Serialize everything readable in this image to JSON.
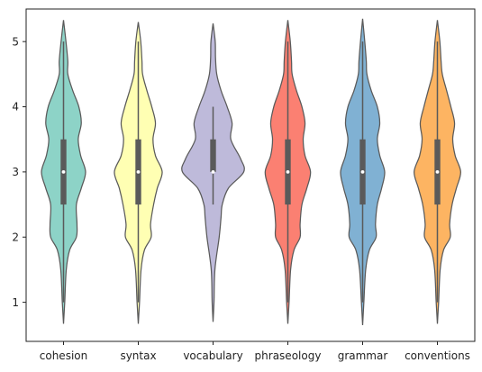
{
  "chart_data": {
    "type": "violin",
    "title": "",
    "xlabel": "",
    "ylabel": "",
    "ylim": [
      0.4,
      5.5
    ],
    "yticks": [
      1,
      2,
      3,
      4,
      5
    ],
    "grid": false,
    "categories": [
      "cohesion",
      "syntax",
      "vocabulary",
      "phraseology",
      "grammar",
      "conventions"
    ],
    "colors": [
      "#8dd3c7",
      "#ffffb3",
      "#bebada",
      "#fb8072",
      "#80b1d3",
      "#fdb462"
    ],
    "outline_color": "#5a5a5a",
    "violins": [
      {
        "category": "cohesion",
        "min": 0.67,
        "max": 5.33,
        "q1": 2.5,
        "median": 3.0,
        "q3": 3.5,
        "whisker_low": 1.0,
        "whisker_high": 5.0,
        "density": [
          [
            0.67,
            0.0
          ],
          [
            1.0,
            0.04
          ],
          [
            1.5,
            0.09
          ],
          [
            1.8,
            0.2
          ],
          [
            2.0,
            0.42
          ],
          [
            2.2,
            0.44
          ],
          [
            2.5,
            0.42
          ],
          [
            2.75,
            0.58
          ],
          [
            3.0,
            0.72
          ],
          [
            3.25,
            0.56
          ],
          [
            3.5,
            0.48
          ],
          [
            3.75,
            0.58
          ],
          [
            4.0,
            0.5
          ],
          [
            4.25,
            0.3
          ],
          [
            4.5,
            0.14
          ],
          [
            4.7,
            0.14
          ],
          [
            5.0,
            0.08
          ],
          [
            5.33,
            0.0
          ]
        ]
      },
      {
        "category": "syntax",
        "min": 0.67,
        "max": 5.3,
        "q1": 2.5,
        "median": 3.0,
        "q3": 3.5,
        "whisker_low": 1.0,
        "whisker_high": 5.0,
        "density": [
          [
            0.67,
            0.0
          ],
          [
            1.0,
            0.04
          ],
          [
            1.5,
            0.09
          ],
          [
            1.8,
            0.2
          ],
          [
            2.0,
            0.42
          ],
          [
            2.2,
            0.4
          ],
          [
            2.5,
            0.5
          ],
          [
            2.75,
            0.62
          ],
          [
            3.0,
            0.78
          ],
          [
            3.25,
            0.56
          ],
          [
            3.5,
            0.48
          ],
          [
            3.75,
            0.56
          ],
          [
            4.0,
            0.44
          ],
          [
            4.25,
            0.28
          ],
          [
            4.5,
            0.14
          ],
          [
            4.7,
            0.12
          ],
          [
            5.0,
            0.08
          ],
          [
            5.3,
            0.0
          ]
        ]
      },
      {
        "category": "vocabulary",
        "min": 0.7,
        "max": 5.28,
        "q1": 3.0,
        "median": 3.0,
        "q3": 3.5,
        "whisker_low": 2.5,
        "whisker_high": 4.0,
        "density": [
          [
            0.7,
            0.0
          ],
          [
            1.0,
            0.03
          ],
          [
            1.5,
            0.06
          ],
          [
            2.0,
            0.2
          ],
          [
            2.3,
            0.26
          ],
          [
            2.5,
            0.3
          ],
          [
            2.75,
            0.5
          ],
          [
            3.0,
            1.0
          ],
          [
            3.2,
            0.9
          ],
          [
            3.5,
            0.58
          ],
          [
            3.75,
            0.62
          ],
          [
            4.0,
            0.46
          ],
          [
            4.25,
            0.26
          ],
          [
            4.5,
            0.12
          ],
          [
            4.75,
            0.08
          ],
          [
            5.0,
            0.07
          ],
          [
            5.28,
            0.0
          ]
        ]
      },
      {
        "category": "phraseology",
        "min": 0.67,
        "max": 5.33,
        "q1": 2.5,
        "median": 3.0,
        "q3": 3.5,
        "whisker_low": 1.0,
        "whisker_high": 5.0,
        "density": [
          [
            0.67,
            0.0
          ],
          [
            1.0,
            0.04
          ],
          [
            1.5,
            0.09
          ],
          [
            1.8,
            0.2
          ],
          [
            2.0,
            0.4
          ],
          [
            2.2,
            0.4
          ],
          [
            2.5,
            0.46
          ],
          [
            2.75,
            0.62
          ],
          [
            3.0,
            0.74
          ],
          [
            3.25,
            0.56
          ],
          [
            3.5,
            0.5
          ],
          [
            3.75,
            0.56
          ],
          [
            4.0,
            0.46
          ],
          [
            4.25,
            0.28
          ],
          [
            4.5,
            0.14
          ],
          [
            4.7,
            0.12
          ],
          [
            5.0,
            0.08
          ],
          [
            5.33,
            0.0
          ]
        ]
      },
      {
        "category": "grammar",
        "min": 0.65,
        "max": 5.35,
        "q1": 2.5,
        "median": 3.0,
        "q3": 3.5,
        "whisker_low": 1.0,
        "whisker_high": 5.0,
        "density": [
          [
            0.65,
            0.0
          ],
          [
            1.0,
            0.04
          ],
          [
            1.5,
            0.1
          ],
          [
            1.8,
            0.22
          ],
          [
            2.0,
            0.44
          ],
          [
            2.2,
            0.42
          ],
          [
            2.5,
            0.48
          ],
          [
            2.75,
            0.62
          ],
          [
            3.0,
            0.72
          ],
          [
            3.25,
            0.56
          ],
          [
            3.5,
            0.48
          ],
          [
            3.75,
            0.56
          ],
          [
            4.0,
            0.48
          ],
          [
            4.25,
            0.28
          ],
          [
            4.5,
            0.14
          ],
          [
            4.7,
            0.12
          ],
          [
            5.0,
            0.07
          ],
          [
            5.35,
            0.0
          ]
        ]
      },
      {
        "category": "conventions",
        "min": 0.67,
        "max": 5.33,
        "q1": 2.5,
        "median": 3.0,
        "q3": 3.5,
        "whisker_low": 1.0,
        "whisker_high": 5.0,
        "density": [
          [
            0.67,
            0.0
          ],
          [
            1.0,
            0.04
          ],
          [
            1.5,
            0.09
          ],
          [
            1.8,
            0.2
          ],
          [
            2.0,
            0.42
          ],
          [
            2.2,
            0.4
          ],
          [
            2.5,
            0.48
          ],
          [
            2.75,
            0.62
          ],
          [
            3.0,
            0.76
          ],
          [
            3.25,
            0.58
          ],
          [
            3.5,
            0.5
          ],
          [
            3.75,
            0.56
          ],
          [
            4.0,
            0.44
          ],
          [
            4.25,
            0.3
          ],
          [
            4.5,
            0.16
          ],
          [
            4.7,
            0.12
          ],
          [
            5.0,
            0.08
          ],
          [
            5.33,
            0.0
          ]
        ]
      }
    ]
  }
}
